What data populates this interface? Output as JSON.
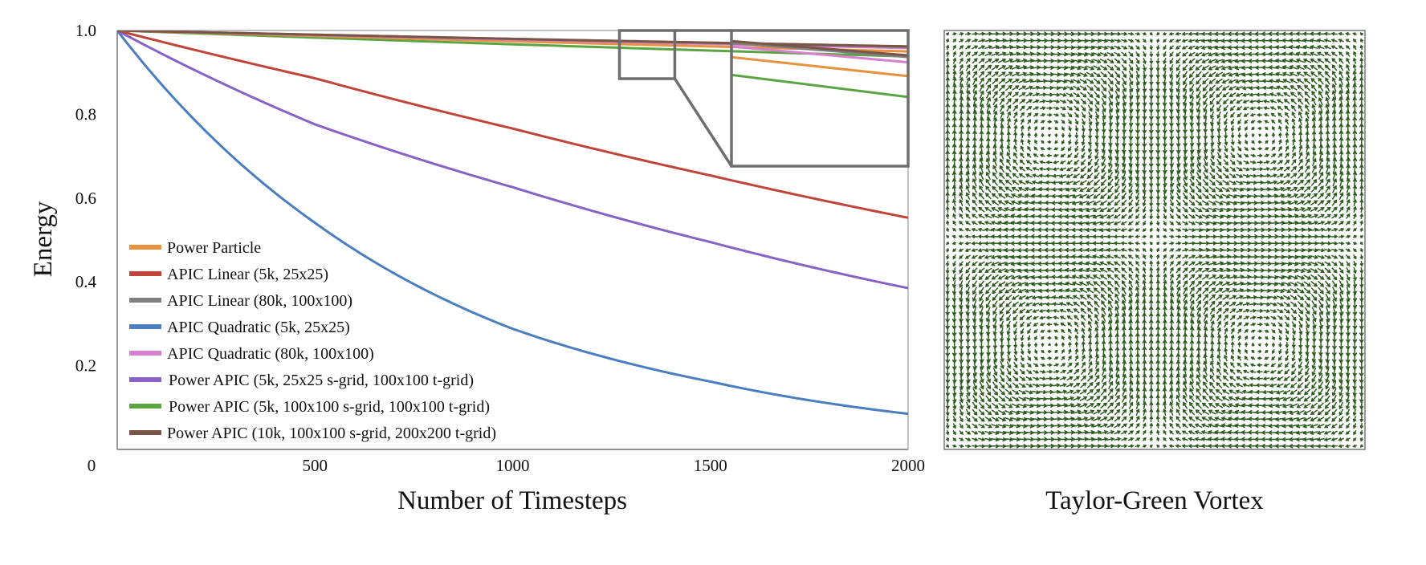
{
  "chart_data": [
    {
      "type": "line",
      "title": "",
      "xlabel": "Number of Timesteps",
      "ylabel": "Energy",
      "xlim": [
        0,
        2000
      ],
      "ylim": [
        0,
        1.0
      ],
      "x_ticks": [
        {
          "value": 0,
          "label": "0"
        },
        {
          "value": 500,
          "label": "500"
        },
        {
          "value": 1000,
          "label": "1000"
        },
        {
          "value": 1500,
          "label": "1500"
        },
        {
          "value": 2000,
          "label": "2000"
        }
      ],
      "y_ticks": [
        {
          "value": 0.2,
          "label": "0.2"
        },
        {
          "value": 0.4,
          "label": "0.4"
        },
        {
          "value": 0.6,
          "label": "0.6"
        },
        {
          "value": 0.8,
          "label": "0.8"
        },
        {
          "value": 1.0,
          "label": "1.0"
        }
      ],
      "grid": false,
      "legend_position": "bottom-left",
      "x": [
        0,
        500,
        1000,
        1500,
        2000
      ],
      "series": [
        {
          "name": "Power Particle",
          "color": "#e8923f",
          "values": [
            1.0,
            0.987,
            0.974,
            0.962,
            0.95
          ]
        },
        {
          "name": "APIC Linear (5k, 25x25)",
          "color": "#c1443a",
          "values": [
            1.0,
            0.886,
            0.766,
            0.654,
            0.553
          ]
        },
        {
          "name": "APIC Linear (80k, 100x100)",
          "color": "#7f7f7f",
          "values": [
            1.0,
            0.99,
            0.98,
            0.97,
            0.961
          ]
        },
        {
          "name": "APIC Quadratic (5k, 25x25)",
          "color": "#4a7ec0",
          "values": [
            1.0,
            0.541,
            0.288,
            0.162,
            0.085
          ]
        },
        {
          "name": "APIC Quadratic (80k, 100x100)",
          "color": "#d97fcf",
          "values": [
            1.0,
            0.989,
            0.978,
            0.968,
            0.958
          ]
        },
        {
          "name": "Power APIC (5k, 25x25 s-grid, 100x100 t-grid)",
          "color": "#8862c4",
          "values": [
            1.0,
            0.776,
            0.626,
            0.495,
            0.385
          ]
        },
        {
          "name": "Power APIC (5k, 100x100 s-grid, 100x100 t-grid)",
          "color": "#5aa542",
          "values": [
            1.0,
            0.983,
            0.967,
            0.952,
            0.938
          ]
        },
        {
          "name": "Power APIC (10k, 100x100 s-grid, 200x200 t-grid)",
          "color": "#7a5547",
          "values": [
            1.0,
            0.99,
            0.98,
            0.971,
            0.962
          ]
        }
      ]
    }
  ],
  "vortex_panel": {
    "caption": "Taylor-Green Vortex",
    "arrow_color": "#2d5a1e"
  }
}
